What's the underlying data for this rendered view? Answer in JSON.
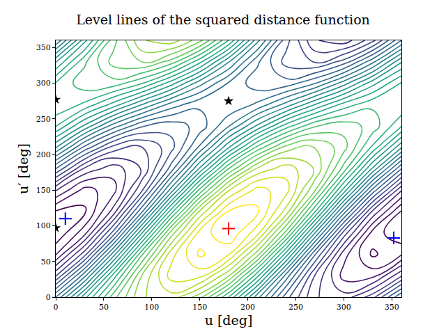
{
  "chart_data": {
    "type": "contour",
    "title": "Level lines of the squared distance function",
    "x_label": "u [deg]",
    "y_label": "u′ [deg]",
    "xlim": [
      0,
      360
    ],
    "ylim": [
      0,
      360
    ],
    "xticks": [
      0,
      50,
      100,
      150,
      200,
      250,
      300,
      350
    ],
    "yticks": [
      0,
      50,
      100,
      150,
      200,
      250,
      300,
      350
    ],
    "grid": false,
    "cells": {
      "x": [
        0,
        30,
        60,
        90,
        120,
        150,
        180,
        210,
        240,
        270,
        300,
        330,
        360
      ],
      "y": [
        0,
        30,
        60,
        90,
        120,
        150,
        180,
        210,
        240,
        270,
        300,
        330,
        360
      ],
      "z": [
        [
          1.6,
          2.16,
          2.66,
          2.99,
          3.06,
          2.84,
          2.4,
          1.84,
          1.34,
          1.01,
          0.94,
          1.16,
          1.6
        ],
        [
          1.09,
          1.67,
          2.34,
          2.91,
          3.24,
          3.24,
          2.91,
          2.33,
          1.66,
          1.09,
          0.76,
          0.76,
          1.09
        ],
        [
          0.69,
          1.16,
          1.85,
          2.59,
          3.16,
          3.42,
          3.31,
          2.84,
          2.15,
          1.41,
          0.84,
          0.58,
          0.69
        ],
        [
          0.51,
          0.76,
          1.34,
          2.1,
          2.84,
          3.34,
          3.49,
          3.24,
          2.66,
          1.9,
          1.16,
          0.66,
          0.51
        ],
        [
          0.59,
          0.58,
          0.94,
          1.59,
          2.35,
          3.02,
          3.41,
          3.42,
          3.06,
          2.41,
          1.65,
          0.98,
          0.59
        ],
        [
          0.91,
          0.66,
          0.76,
          1.19,
          1.84,
          2.53,
          3.09,
          3.34,
          3.24,
          2.81,
          2.16,
          1.47,
          0.91
        ],
        [
          1.4,
          0.98,
          0.84,
          1.01,
          1.44,
          2.02,
          2.6,
          3.02,
          3.16,
          2.99,
          2.56,
          1.98,
          1.4
        ],
        [
          1.91,
          1.47,
          1.16,
          1.09,
          1.26,
          1.62,
          2.09,
          2.53,
          2.84,
          2.91,
          2.74,
          2.38,
          1.91
        ],
        [
          2.31,
          1.98,
          1.65,
          1.41,
          1.34,
          1.44,
          1.69,
          2.02,
          2.35,
          2.59,
          2.66,
          2.56,
          2.31
        ],
        [
          2.49,
          2.38,
          2.16,
          1.9,
          1.66,
          1.52,
          1.51,
          1.62,
          1.84,
          2.1,
          2.34,
          2.48,
          2.49
        ],
        [
          2.41,
          2.56,
          2.56,
          2.41,
          2.15,
          1.84,
          1.59,
          1.44,
          1.44,
          1.59,
          1.85,
          2.16,
          2.41
        ],
        [
          2.09,
          2.48,
          2.74,
          2.81,
          2.66,
          2.33,
          1.91,
          1.52,
          1.26,
          1.19,
          1.34,
          1.67,
          2.09
        ],
        [
          1.6,
          2.16,
          2.66,
          2.99,
          3.06,
          2.84,
          2.4,
          1.84,
          1.34,
          1.01,
          0.94,
          1.16,
          1.6
        ]
      ]
    },
    "levels": {
      "start": 0.6,
      "end": 3.4,
      "size": 0.1
    },
    "color": "viridis",
    "series": [
      {
        "type": "scatter",
        "color": "#ff0000",
        "marker": "plus",
        "x": [
          180
        ],
        "y": [
          96
        ]
      },
      {
        "type": "scatter",
        "color": "#0000ff",
        "marker": "plus",
        "x": [
          10,
          352
        ],
        "y": [
          110,
          83
        ]
      },
      {
        "type": "scatter",
        "color": "#000000",
        "marker": "star",
        "x": [
          0,
          180,
          0
        ],
        "y": [
          277,
          275,
          97
        ]
      }
    ]
  }
}
